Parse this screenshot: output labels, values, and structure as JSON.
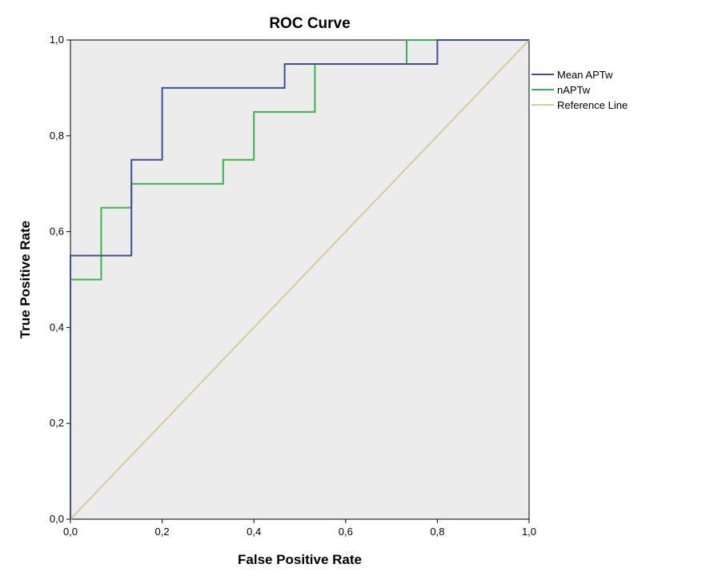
{
  "chart_data": {
    "type": "line",
    "title": "ROC Curve",
    "xlabel": "False Positive Rate",
    "ylabel": "True Positive Rate",
    "xlim": [
      0,
      1
    ],
    "ylim": [
      0,
      1
    ],
    "x_ticks": [
      0,
      0.2,
      0.4,
      0.6,
      0.8,
      1.0
    ],
    "y_ticks": [
      0,
      0.2,
      0.4,
      0.6,
      0.8,
      1.0
    ],
    "x_tick_labels": [
      "0,0",
      "0,2",
      "0,4",
      "0,6",
      "0,8",
      "1,0"
    ],
    "y_tick_labels": [
      "0,0",
      "0,2",
      "0,4",
      "0,6",
      "0,8",
      "1,0"
    ],
    "grid": false,
    "legend_position": "right",
    "series": [
      {
        "name": "Mean APTw",
        "color": "#3d4fa0",
        "x": [
          0,
          0,
          0.133,
          0.133,
          0.2,
          0.2,
          0.467,
          0.467,
          0.8,
          0.8,
          1.0
        ],
        "y": [
          0,
          0.55,
          0.55,
          0.75,
          0.75,
          0.9,
          0.9,
          0.95,
          0.95,
          1.0,
          1.0
        ]
      },
      {
        "name": "nAPTw",
        "color": "#3ab54a",
        "x": [
          0,
          0,
          0.067,
          0.067,
          0.133,
          0.133,
          0.333,
          0.333,
          0.4,
          0.4,
          0.533,
          0.533,
          0.733,
          0.733,
          1.0
        ],
        "y": [
          0,
          0.5,
          0.5,
          0.65,
          0.65,
          0.7,
          0.7,
          0.75,
          0.75,
          0.85,
          0.85,
          0.95,
          0.95,
          1.0,
          1.0
        ]
      },
      {
        "name": "Reference Line",
        "color": "#d6cc98",
        "x": [
          0,
          1
        ],
        "y": [
          0,
          1
        ]
      }
    ],
    "plot_background": "#ececec"
  }
}
